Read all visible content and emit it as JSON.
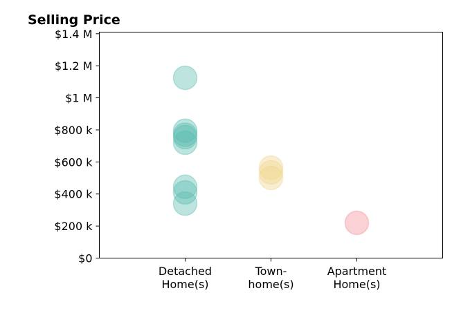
{
  "chart_data": {
    "type": "scatter",
    "title": "Selling Price",
    "xlabel": "",
    "ylabel": "",
    "categories": [
      [
        "Detached",
        "Home(s)"
      ],
      [
        "Town-",
        "home(s)"
      ],
      [
        "Apartment",
        "Home(s)"
      ]
    ],
    "yticks": [
      {
        "value": 0,
        "label": "$0"
      },
      {
        "value": 200000,
        "label": "$200 k"
      },
      {
        "value": 400000,
        "label": "$400 k"
      },
      {
        "value": 600000,
        "label": "$600 k"
      },
      {
        "value": 800000,
        "label": "$800 k"
      },
      {
        "value": 1000000,
        "label": "$1 M"
      },
      {
        "value": 1200000,
        "label": "$1.2 M"
      },
      {
        "value": 1400000,
        "label": "$1.4 M"
      }
    ],
    "ylim": [
      0,
      1410000
    ],
    "xlim": [
      -1,
      3
    ],
    "grid": false,
    "series": [
      {
        "color": "#5bbcaf",
        "category_index": 0,
        "values": [
          1125000,
          795000,
          770000,
          755000,
          720000,
          445000,
          410000,
          340000
        ]
      },
      {
        "color": "#f0d48c",
        "category_index": 1,
        "values": [
          565000,
          535000,
          500000
        ]
      },
      {
        "color": "#f28b95",
        "category_index": 2,
        "values": [
          220000
        ]
      }
    ],
    "marker_opacity": 0.4
  }
}
